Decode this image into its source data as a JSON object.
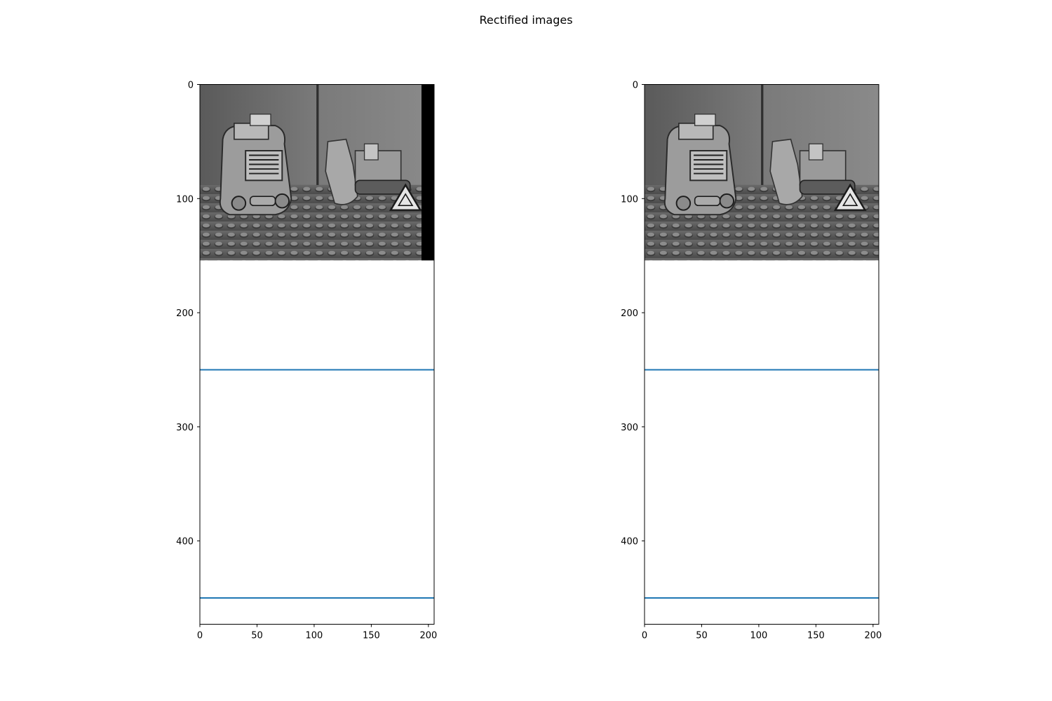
{
  "figure_title": "Rectified images",
  "chart_data": [
    {
      "type": "image_with_lines",
      "image_description": "grayscale photo: toy truck and excavator on studded baseplate, wooden wall behind; black band on right edge",
      "image_extent": {
        "x": [
          0,
          205
        ],
        "y": [
          0,
          154
        ]
      },
      "xlim": [
        0,
        205
      ],
      "ylim": [
        473,
        0
      ],
      "xticks": [
        0,
        50,
        100,
        150,
        200
      ],
      "yticks": [
        0,
        100,
        200,
        300,
        400
      ],
      "hlines": [
        250,
        450
      ],
      "line_color": "#1f77b4",
      "black_band_from_x": 194
    },
    {
      "type": "image_with_lines",
      "image_description": "grayscale photo: same toy scene from slightly shifted viewpoint",
      "image_extent": {
        "x": [
          0,
          205
        ],
        "y": [
          0,
          154
        ]
      },
      "xlim": [
        0,
        205
      ],
      "ylim": [
        473,
        0
      ],
      "xticks": [
        0,
        50,
        100,
        150,
        200
      ],
      "yticks": [
        0,
        100,
        200,
        300,
        400
      ],
      "hlines": [
        250,
        450
      ],
      "line_color": "#1f77b4",
      "black_band_from_x": null
    }
  ]
}
